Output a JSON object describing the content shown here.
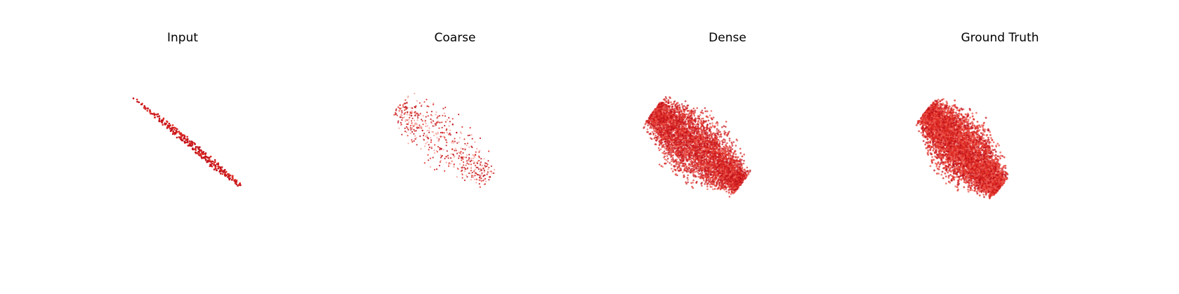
{
  "figure": {
    "panels": [
      {
        "title": "Input",
        "style": "sparse-structured"
      },
      {
        "title": "Coarse",
        "style": "sparse-scattered"
      },
      {
        "title": "Dense",
        "style": "dense"
      },
      {
        "title": "Ground Truth",
        "style": "dense-smooth"
      }
    ]
  },
  "colors": {
    "point_dark": "#c0101a",
    "point_mid": "#dd2a22",
    "point_light": "#ee5a50",
    "point_faint": "#f5a09a"
  }
}
